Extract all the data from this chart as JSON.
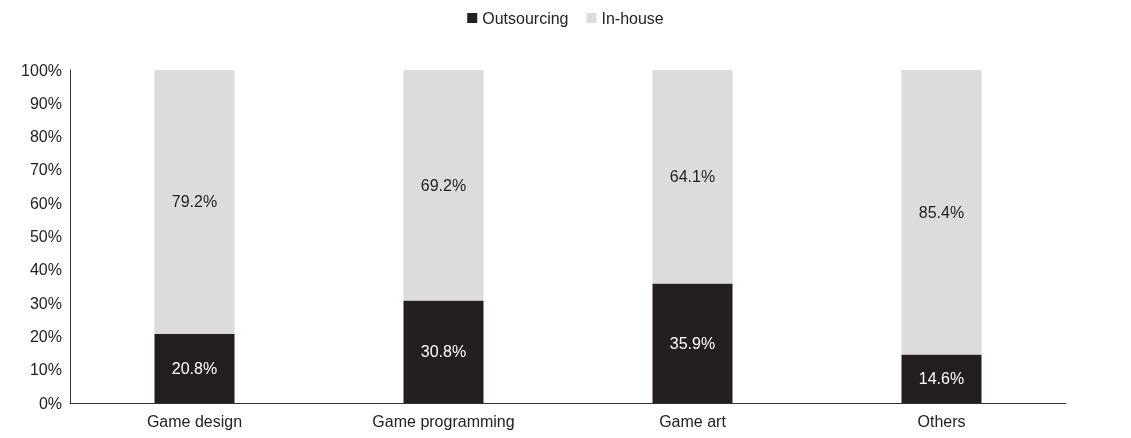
{
  "chart_data": {
    "type": "bar",
    "stacked": true,
    "categories": [
      "Game design",
      "Game programming",
      "Game art",
      "Others"
    ],
    "series": [
      {
        "name": "Outsourcing",
        "color": "#231f20",
        "values": [
          20.8,
          30.8,
          35.9,
          14.6
        ],
        "value_labels": [
          "20.8%",
          "30.8%",
          "35.9%",
          "14.6%"
        ]
      },
      {
        "name": "In-house",
        "color": "#dcdcdc",
        "values": [
          79.2,
          69.2,
          64.1,
          85.4
        ],
        "value_labels": [
          "79.2%",
          "69.2%",
          "64.1%",
          "85.4%"
        ]
      }
    ],
    "ylim": [
      0,
      100
    ],
    "yticks": [
      {
        "value": 0,
        "label": "0%"
      },
      {
        "value": 10,
        "label": "10%"
      },
      {
        "value": 20,
        "label": "20%"
      },
      {
        "value": 30,
        "label": "30%"
      },
      {
        "value": 40,
        "label": "40%"
      },
      {
        "value": 50,
        "label": "50%"
      },
      {
        "value": 60,
        "label": "60%"
      },
      {
        "value": 70,
        "label": "70%"
      },
      {
        "value": 80,
        "label": "80%"
      },
      {
        "value": 90,
        "label": "90%"
      },
      {
        "value": 100,
        "label": "100%"
      }
    ],
    "grid": false,
    "legend": "top"
  }
}
